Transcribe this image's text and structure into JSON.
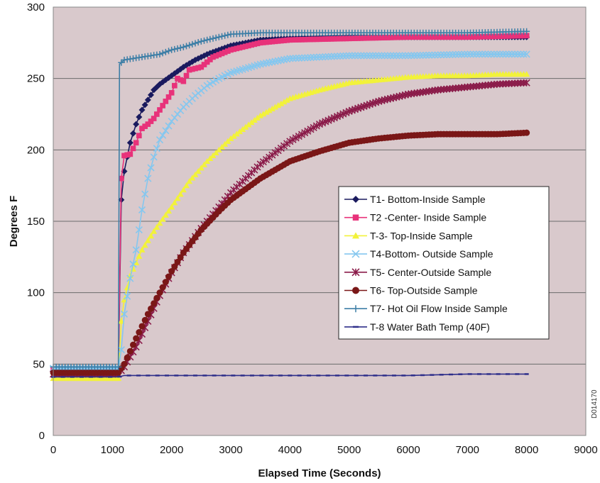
{
  "chart_data": {
    "type": "line",
    "title": "",
    "xlabel": "Elapsed Time (Seconds)",
    "ylabel": "Degrees F",
    "xlim": [
      0,
      9000
    ],
    "ylim": [
      0,
      300
    ],
    "xticks": [
      0,
      1000,
      2000,
      3000,
      4000,
      5000,
      6000,
      7000,
      8000,
      9000
    ],
    "yticks": [
      0,
      50,
      100,
      150,
      200,
      250,
      300
    ],
    "grid": "horizontal",
    "legend_position": "center-right",
    "plot_background": "#d9c9cc",
    "side_code": "D014170",
    "series": [
      {
        "name": "T1- Bottom-Inside Sample",
        "color": "#1a1a5e",
        "marker": "diamond",
        "points": [
          [
            0,
            45
          ],
          [
            500,
            45
          ],
          [
            1000,
            45
          ],
          [
            1100,
            45
          ],
          [
            1150,
            165
          ],
          [
            1200,
            185
          ],
          [
            1300,
            205
          ],
          [
            1400,
            218
          ],
          [
            1500,
            228
          ],
          [
            1600,
            235
          ],
          [
            1700,
            242
          ],
          [
            1800,
            246
          ],
          [
            2000,
            252
          ],
          [
            2200,
            258
          ],
          [
            2400,
            263
          ],
          [
            2600,
            267
          ],
          [
            2800,
            270
          ],
          [
            3000,
            273
          ],
          [
            3500,
            277
          ],
          [
            4000,
            278
          ],
          [
            5000,
            279
          ],
          [
            6000,
            279
          ],
          [
            7000,
            279
          ],
          [
            8000,
            279
          ]
        ]
      },
      {
        "name": "T2 -Center- Inside Sample",
        "color": "#e8327a",
        "marker": "square",
        "points": [
          [
            0,
            46
          ],
          [
            500,
            46
          ],
          [
            1000,
            46
          ],
          [
            1100,
            46
          ],
          [
            1150,
            180
          ],
          [
            1200,
            196
          ],
          [
            1300,
            197
          ],
          [
            1400,
            205
          ],
          [
            1500,
            215
          ],
          [
            1600,
            218
          ],
          [
            1700,
            222
          ],
          [
            1800,
            228
          ],
          [
            2000,
            240
          ],
          [
            2100,
            250
          ],
          [
            2200,
            248
          ],
          [
            2300,
            256
          ],
          [
            2500,
            258
          ],
          [
            2700,
            265
          ],
          [
            3000,
            270
          ],
          [
            3500,
            275
          ],
          [
            4000,
            277
          ],
          [
            5000,
            278
          ],
          [
            6000,
            279
          ],
          [
            7000,
            279
          ],
          [
            8000,
            280
          ]
        ]
      },
      {
        "name": "T-3- Top-Inside Sample",
        "color": "#f2f23a",
        "marker": "triangle",
        "points": [
          [
            0,
            40
          ],
          [
            500,
            40
          ],
          [
            1000,
            40
          ],
          [
            1100,
            40
          ],
          [
            1150,
            80
          ],
          [
            1200,
            95
          ],
          [
            1300,
            112
          ],
          [
            1500,
            130
          ],
          [
            1700,
            143
          ],
          [
            2000,
            160
          ],
          [
            2300,
            178
          ],
          [
            2600,
            192
          ],
          [
            3000,
            208
          ],
          [
            3500,
            224
          ],
          [
            4000,
            236
          ],
          [
            4500,
            242
          ],
          [
            5000,
            247
          ],
          [
            5500,
            249
          ],
          [
            6000,
            251
          ],
          [
            6500,
            252
          ],
          [
            7000,
            252
          ],
          [
            7500,
            253
          ],
          [
            8000,
            253
          ]
        ]
      },
      {
        "name": "T4-Bottom- Outside Sample",
        "color": "#85c7ef",
        "marker": "x",
        "points": [
          [
            0,
            47
          ],
          [
            500,
            47
          ],
          [
            1000,
            47
          ],
          [
            1100,
            47
          ],
          [
            1150,
            60
          ],
          [
            1200,
            85
          ],
          [
            1300,
            110
          ],
          [
            1400,
            130
          ],
          [
            1500,
            158
          ],
          [
            1600,
            180
          ],
          [
            1700,
            195
          ],
          [
            1800,
            207
          ],
          [
            2000,
            220
          ],
          [
            2200,
            230
          ],
          [
            2400,
            238
          ],
          [
            2600,
            245
          ],
          [
            2800,
            250
          ],
          [
            3000,
            254
          ],
          [
            3500,
            260
          ],
          [
            4000,
            264
          ],
          [
            5000,
            266
          ],
          [
            6000,
            266
          ],
          [
            7000,
            267
          ],
          [
            8000,
            267
          ]
        ]
      },
      {
        "name": "T5- Center-Outside Sample",
        "color": "#8b1c4a",
        "marker": "star",
        "points": [
          [
            0,
            43
          ],
          [
            500,
            43
          ],
          [
            1000,
            43
          ],
          [
            1100,
            43
          ],
          [
            1200,
            48
          ],
          [
            1400,
            62
          ],
          [
            1600,
            80
          ],
          [
            1800,
            98
          ],
          [
            2000,
            114
          ],
          [
            2200,
            128
          ],
          [
            2500,
            145
          ],
          [
            2800,
            160
          ],
          [
            3000,
            170
          ],
          [
            3500,
            190
          ],
          [
            4000,
            206
          ],
          [
            4500,
            218
          ],
          [
            5000,
            227
          ],
          [
            5500,
            234
          ],
          [
            6000,
            239
          ],
          [
            6500,
            242
          ],
          [
            7000,
            244
          ],
          [
            7500,
            246
          ],
          [
            8000,
            247
          ]
        ]
      },
      {
        "name": "T6- Top-Outside Sample",
        "color": "#7a1717",
        "marker": "circle",
        "points": [
          [
            0,
            44
          ],
          [
            500,
            44
          ],
          [
            1000,
            44
          ],
          [
            1100,
            44
          ],
          [
            1200,
            50
          ],
          [
            1400,
            68
          ],
          [
            1600,
            85
          ],
          [
            1800,
            100
          ],
          [
            2000,
            115
          ],
          [
            2200,
            128
          ],
          [
            2500,
            144
          ],
          [
            2800,
            157
          ],
          [
            3000,
            165
          ],
          [
            3500,
            180
          ],
          [
            4000,
            192
          ],
          [
            4500,
            199
          ],
          [
            5000,
            205
          ],
          [
            5500,
            208
          ],
          [
            6000,
            210
          ],
          [
            6500,
            211
          ],
          [
            7000,
            211
          ],
          [
            7500,
            211
          ],
          [
            8000,
            212
          ]
        ]
      },
      {
        "name": "T7- Hot Oil Flow Inside Sample",
        "color": "#3d7ea6",
        "marker": "plus",
        "points": [
          [
            0,
            48
          ],
          [
            500,
            48
          ],
          [
            1000,
            48
          ],
          [
            1100,
            48
          ],
          [
            1120,
            260
          ],
          [
            1200,
            263
          ],
          [
            1500,
            265
          ],
          [
            1800,
            267
          ],
          [
            2000,
            270
          ],
          [
            2200,
            272
          ],
          [
            2500,
            276
          ],
          [
            2800,
            279
          ],
          [
            3000,
            281
          ],
          [
            3500,
            282
          ],
          [
            4000,
            282
          ],
          [
            5000,
            282
          ],
          [
            6000,
            282
          ],
          [
            7000,
            282
          ],
          [
            8000,
            283
          ]
        ]
      },
      {
        "name": "T-8 Water Bath Temp (40F)",
        "color": "#2e2e8a",
        "marker": "dash",
        "points": [
          [
            0,
            41
          ],
          [
            500,
            41
          ],
          [
            1000,
            41
          ],
          [
            1100,
            41
          ],
          [
            1200,
            42
          ],
          [
            1500,
            42
          ],
          [
            2000,
            42
          ],
          [
            3000,
            42
          ],
          [
            4000,
            42
          ],
          [
            5000,
            42
          ],
          [
            6000,
            42
          ],
          [
            7000,
            43
          ],
          [
            8000,
            43
          ]
        ]
      }
    ]
  }
}
